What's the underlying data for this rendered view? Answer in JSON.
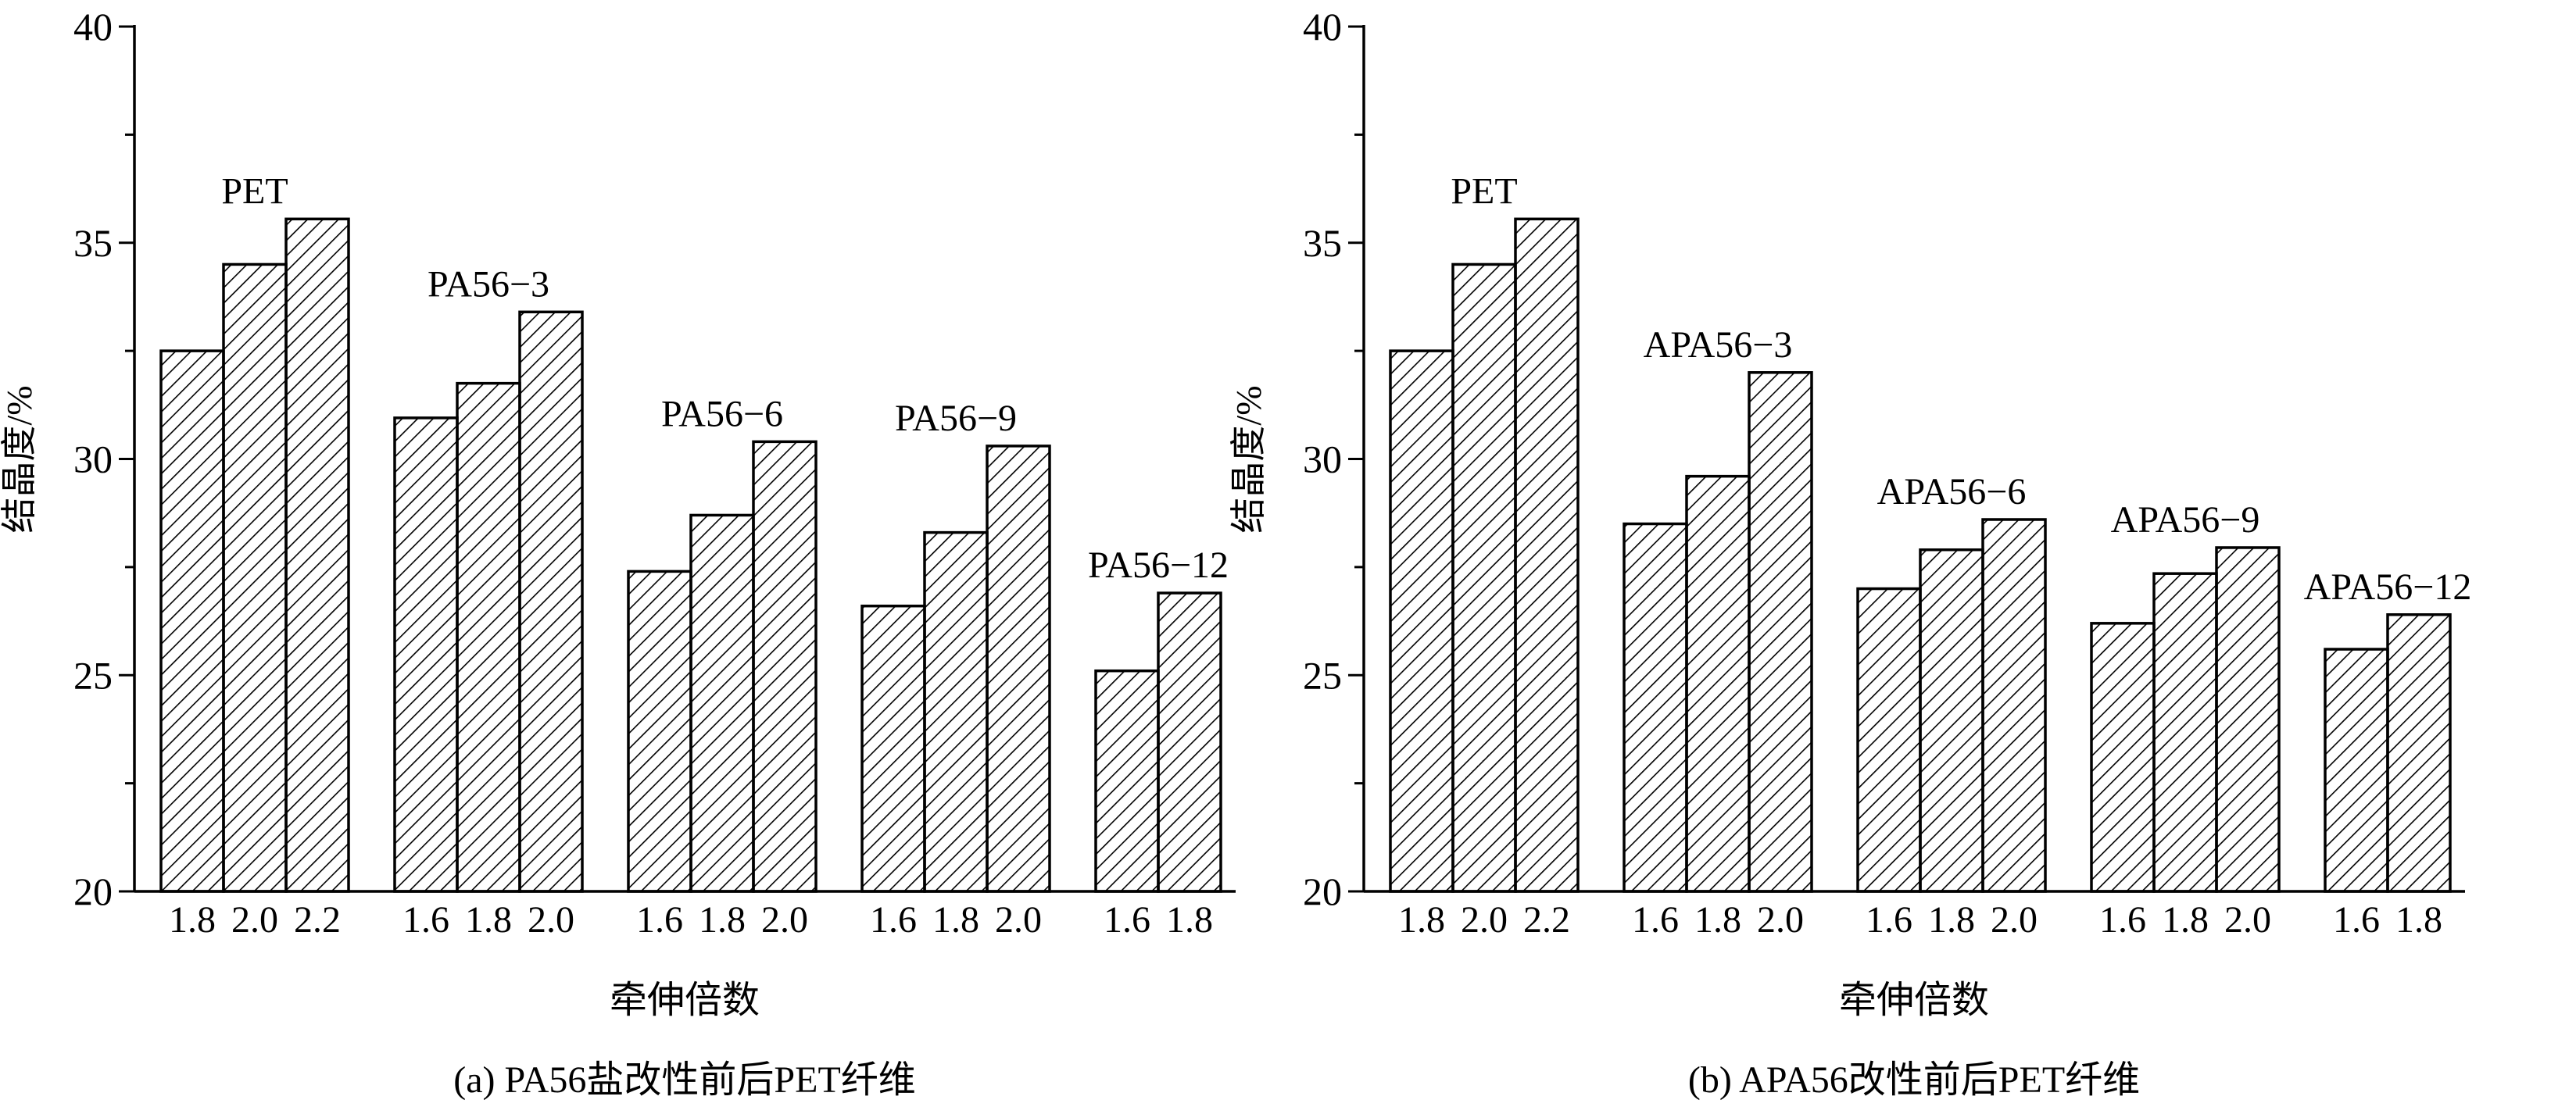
{
  "chart_data": [
    {
      "type": "bar",
      "caption": "(a) PA56盐改性前后PET纤维",
      "xlabel": "牵伸倍数",
      "ylabel": "结晶度/%",
      "ylim": [
        20,
        40
      ],
      "yticks": [
        "20",
        "25",
        "30",
        "35",
        "40"
      ],
      "groups": [
        {
          "name": "PET",
          "categories": [
            "1.8",
            "2.0",
            "2.2"
          ],
          "values": [
            32.5,
            34.5,
            35.55
          ]
        },
        {
          "name": "PA56−3",
          "categories": [
            "1.6",
            "1.8",
            "2.0"
          ],
          "values": [
            30.95,
            31.75,
            33.4
          ]
        },
        {
          "name": "PA56−6",
          "categories": [
            "1.6",
            "1.8",
            "2.0"
          ],
          "values": [
            27.4,
            28.7,
            30.4
          ]
        },
        {
          "name": "PA56−9",
          "categories": [
            "1.6",
            "1.8",
            "2.0"
          ],
          "values": [
            26.6,
            28.3,
            30.3
          ]
        },
        {
          "name": "PA56−12",
          "categories": [
            "1.6",
            "1.8"
          ],
          "values": [
            25.1,
            26.9
          ]
        }
      ]
    },
    {
      "type": "bar",
      "caption": "(b) APA56改性前后PET纤维",
      "xlabel": "牵伸倍数",
      "ylabel": "结晶度/%",
      "ylim": [
        20,
        40
      ],
      "yticks": [
        "20",
        "25",
        "30",
        "35",
        "40"
      ],
      "groups": [
        {
          "name": "PET",
          "categories": [
            "1.8",
            "2.0",
            "2.2"
          ],
          "values": [
            32.5,
            34.5,
            35.55
          ]
        },
        {
          "name": "APA56−3",
          "categories": [
            "1.6",
            "1.8",
            "2.0"
          ],
          "values": [
            28.5,
            29.6,
            32.0
          ]
        },
        {
          "name": "APA56−6",
          "categories": [
            "1.6",
            "1.8",
            "2.0"
          ],
          "values": [
            27.0,
            27.9,
            28.6
          ]
        },
        {
          "name": "APA56−9",
          "categories": [
            "1.6",
            "1.8",
            "2.0"
          ],
          "values": [
            26.2,
            27.35,
            27.95
          ]
        },
        {
          "name": "APA56−12",
          "categories": [
            "1.6",
            "1.8"
          ],
          "values": [
            25.6,
            26.4
          ]
        }
      ]
    }
  ]
}
